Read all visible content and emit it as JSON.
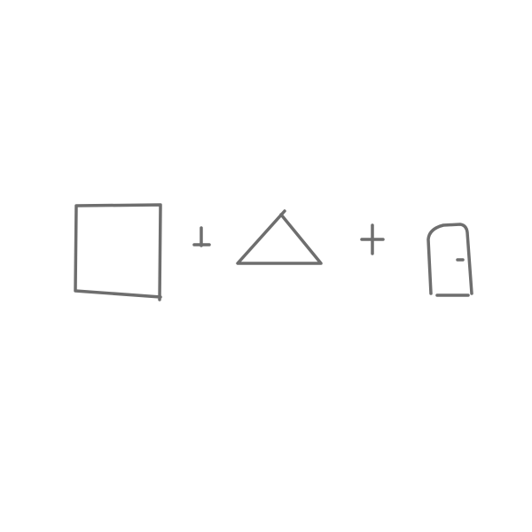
{
  "drawing": {
    "stroke_color": "#6e6e6e",
    "background_color": "#ffffff",
    "items": [
      {
        "kind": "shape",
        "name": "square"
      },
      {
        "kind": "operator",
        "name": "plus"
      },
      {
        "kind": "shape",
        "name": "triangle"
      },
      {
        "kind": "operator",
        "name": "plus"
      },
      {
        "kind": "shape",
        "name": "door"
      }
    ]
  }
}
